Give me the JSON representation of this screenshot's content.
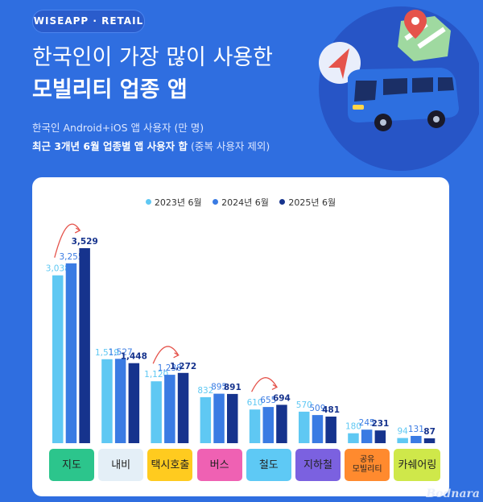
{
  "header": {
    "brand": "WISEAPP · RETAIL",
    "title_line1": "한국인이 가장 많이 사용한",
    "title_line2": "모빌리티 업종 앱",
    "subtitle1": "한국인 Android+iOS 앱 사용자 (만 명)",
    "subtitle2_bold": "최근 3개년 6월 업종별 앱 사용자 합",
    "subtitle2_paren": "(중복 사용자 제외)"
  },
  "watermark": "Bodnara",
  "colors": {
    "background": "#2f6ee0",
    "series_2023": "#5fc8f3",
    "series_2024": "#3a7be3",
    "series_2025": "#16338d",
    "growth_arrow": "#e5534b"
  },
  "chart_data": {
    "type": "bar",
    "legend_position": "top-center",
    "categories": [
      "지도",
      "내비",
      "택시호출",
      "버스",
      "철도",
      "지하철",
      "공유 모빌리티",
      "카쉐어링"
    ],
    "category_colors": [
      "#2cc58c",
      "#e4eff7",
      "#ffcb1f",
      "#ef61b3",
      "#5ec9f5",
      "#7b61e0",
      "#ff8a2e",
      "#cfe84a"
    ],
    "series": [
      {
        "name": "2023년 6월",
        "values": [
          3038,
          1519,
          1120,
          832,
          610,
          570,
          180,
          94
        ]
      },
      {
        "name": "2024년 6월",
        "values": [
          3255,
          1527,
          1238,
          895,
          655,
          509,
          245,
          131
        ]
      },
      {
        "name": "2025년 6월",
        "values": [
          3529,
          1448,
          1272,
          891,
          694,
          481,
          231,
          87
        ]
      }
    ],
    "labels": [
      [
        "3,038",
        "1,519",
        "1,120",
        "832",
        "610",
        "570",
        "180",
        "94"
      ],
      [
        "3,255",
        "1,527",
        "1,238",
        "895",
        "655",
        "509",
        "245",
        "131"
      ],
      [
        "3,529",
        "1,448",
        "1,272",
        "891",
        "694",
        "481",
        "231",
        "87"
      ]
    ],
    "growth_arrows_on": [
      "지도",
      "택시호출",
      "철도"
    ],
    "ylim": [
      0,
      3529
    ],
    "grid": false
  }
}
